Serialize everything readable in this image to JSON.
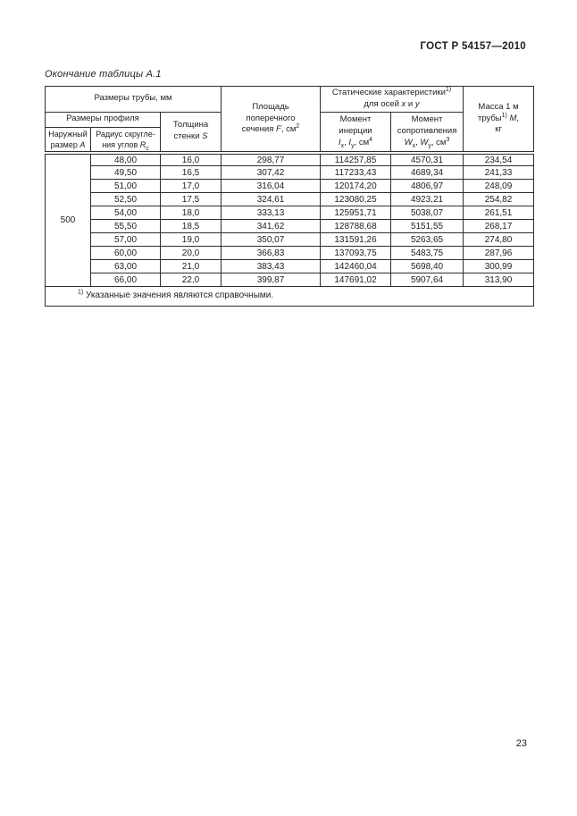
{
  "page": {
    "doc_header": "ГОСТ Р 54157—2010",
    "table_caption": "Окончание таблицы А.1",
    "page_number": "23"
  },
  "table": {
    "header": {
      "dims_group": "Размеры трубы, мм",
      "profile_group": "Размеры профиля",
      "outer_size": [
        {
          "t": "Наружный"
        },
        {
          "br": true
        },
        {
          "t": "размер "
        },
        {
          "t": "А",
          "i": true
        }
      ],
      "radius": [
        {
          "t": "Радиус скругле-"
        },
        {
          "br": true
        },
        {
          "t": "ния углов "
        },
        {
          "t": "R",
          "i": true
        },
        {
          "t": "с",
          "sub": true
        }
      ],
      "thickness": [
        {
          "t": "Толщина"
        },
        {
          "br": true
        },
        {
          "t": "стенки "
        },
        {
          "t": "S",
          "i": true
        }
      ],
      "area": [
        {
          "t": "Площадь"
        },
        {
          "br": true
        },
        {
          "t": "поперечного"
        },
        {
          "br": true
        },
        {
          "t": "сечения "
        },
        {
          "t": "F",
          "i": true
        },
        {
          "t": ", см"
        },
        {
          "t": "2",
          "sup": true
        }
      ],
      "static_group": [
        {
          "t": "Статические характеристики"
        },
        {
          "t": "1)",
          "sup": true
        },
        {
          "br": true
        },
        {
          "t": "для осей "
        },
        {
          "t": "x",
          "i": true
        },
        {
          "t": " и "
        },
        {
          "t": "y",
          "i": true
        }
      ],
      "inertia": [
        {
          "t": "Момент"
        },
        {
          "br": true
        },
        {
          "t": "инерции"
        },
        {
          "br": true
        },
        {
          "t": "I",
          "i": true
        },
        {
          "t": "x",
          "sub": true
        },
        {
          "t": ", "
        },
        {
          "t": "I",
          "i": true
        },
        {
          "t": "y",
          "sub": true
        },
        {
          "t": ", см"
        },
        {
          "t": "4",
          "sup": true
        }
      ],
      "resistance": [
        {
          "t": "Момент"
        },
        {
          "br": true
        },
        {
          "t": "сопротивления"
        },
        {
          "br": true
        },
        {
          "t": "W",
          "i": true
        },
        {
          "t": "x",
          "sub": true
        },
        {
          "t": ", "
        },
        {
          "t": "W",
          "i": true
        },
        {
          "t": "y",
          "sub": true
        },
        {
          "t": ", см"
        },
        {
          "t": "3",
          "sup": true
        }
      ],
      "mass": [
        {
          "t": "Масса 1 м"
        },
        {
          "br": true
        },
        {
          "t": "трубы"
        },
        {
          "t": "1)",
          "sup": true
        },
        {
          "t": " "
        },
        {
          "t": "М",
          "i": true
        },
        {
          "t": ","
        },
        {
          "br": true
        },
        {
          "t": "кг"
        }
      ]
    },
    "outer_size_value": "500",
    "rows": [
      [
        "48,00",
        "16,0",
        "298,77",
        "114257,85",
        "4570,31",
        "234,54"
      ],
      [
        "49,50",
        "16,5",
        "307,42",
        "117233,43",
        "4689,34",
        "241,33"
      ],
      [
        "51,00",
        "17,0",
        "316,04",
        "120174,20",
        "4806,97",
        "248,09"
      ],
      [
        "52,50",
        "17,5",
        "324,61",
        "123080,25",
        "4923,21",
        "254,82"
      ],
      [
        "54,00",
        "18,0",
        "333,13",
        "125951,71",
        "5038,07",
        "261,51"
      ],
      [
        "55,50",
        "18,5",
        "341,62",
        "128788,68",
        "5151,55",
        "268,17"
      ],
      [
        "57,00",
        "19,0",
        "350,07",
        "131591,26",
        "5263,65",
        "274,80"
      ],
      [
        "60,00",
        "20,0",
        "366,83",
        "137093,75",
        "5483,75",
        "287,96"
      ],
      [
        "63,00",
        "21,0",
        "383,43",
        "142460,04",
        "5698,40",
        "300,99"
      ],
      [
        "66,00",
        "22,0",
        "399,87",
        "147691,02",
        "5907,64",
        "313,90"
      ]
    ],
    "footnote": [
      {
        "t": "1)",
        "sup": true
      },
      {
        "t": " Указанные значения являются справочными."
      }
    ]
  }
}
